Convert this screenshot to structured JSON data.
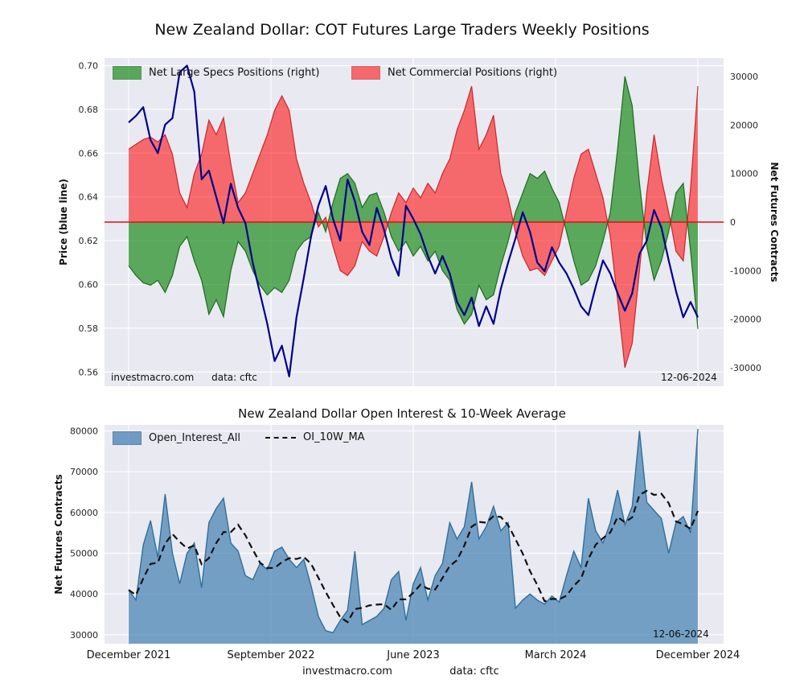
{
  "watermarks": {
    "site": "investmacro.com",
    "data_source": "data: cftc",
    "date_stamp": "12-06-2024"
  },
  "style": {
    "plot_bg": "#e9e9f1",
    "grid": "#ffffff",
    "zero_line": "#dd1111"
  },
  "chart_data": [
    {
      "type": "area+line",
      "title": "New Zealand Dollar: COT Futures Large Traders Weekly Positions",
      "frequency": "weekly (sampled ~biweekly, Dec 2021 - Dec 2024)",
      "x_tick_labels": [
        "December 2021",
        "September 2022",
        "June 2023",
        "March 2024",
        "December 2024"
      ],
      "left_axis": {
        "label": "Price (blue line)",
        "ticks": [
          0.7,
          0.68,
          0.66,
          0.64,
          0.62,
          0.6,
          0.58,
          0.56
        ],
        "range": [
          0.5535,
          0.7035
        ]
      },
      "right_axis": {
        "label": "Net Futures Contracts",
        "ticks": [
          30000,
          20000,
          10000,
          0,
          -10000,
          -20000,
          -30000
        ],
        "range": [
          -33800,
          33800
        ]
      },
      "series": [
        {
          "name": "Net Large Specs Positions (right)",
          "axis": "right",
          "color": "#008000",
          "values": [
            -9000,
            -11000,
            -12500,
            -13000,
            -12000,
            -14500,
            -11000,
            -5000,
            -3000,
            -8000,
            -12000,
            -19000,
            -16000,
            -19500,
            -10000,
            -4000,
            -6000,
            -10000,
            -13000,
            -15000,
            -13500,
            -14500,
            -12000,
            -6000,
            -4000,
            -3000,
            2000,
            -2000,
            4000,
            9000,
            10000,
            8000,
            3000,
            5500,
            6000,
            2000,
            -3000,
            -6000,
            -4000,
            -7000,
            -5000,
            -8000,
            -6000,
            -10000,
            -12000,
            -18000,
            -21000,
            -19000,
            -13000,
            -16000,
            -15000,
            -9000,
            -4000,
            2000,
            6000,
            10000,
            9000,
            10500,
            7000,
            4000,
            -2000,
            -8000,
            -13000,
            -12000,
            -9000,
            -4000,
            2000,
            15000,
            30000,
            24000,
            8000,
            -5000,
            -12000,
            -8000,
            -2000,
            6000,
            8000,
            -6000,
            -22000
          ]
        },
        {
          "name": "Net Commercial Positions (right)",
          "axis": "right",
          "color": "#ff0000",
          "values": [
            15000,
            16000,
            17000,
            17500,
            16500,
            18000,
            14000,
            6000,
            3000,
            10000,
            14000,
            21000,
            18000,
            21500,
            12000,
            4000,
            6000,
            10000,
            14000,
            18000,
            23000,
            26000,
            23000,
            13000,
            8000,
            4000,
            -1000,
            1000,
            -5000,
            -10000,
            -11000,
            -9000,
            -4000,
            -6000,
            -7000,
            -3000,
            2000,
            6000,
            4000,
            7000,
            5000,
            8000,
            6000,
            10000,
            13000,
            19000,
            23000,
            28000,
            15000,
            18000,
            22000,
            10000,
            5000,
            -2000,
            -7000,
            -10000,
            -9500,
            -11000,
            -8000,
            -5000,
            2000,
            9000,
            14000,
            15000,
            10000,
            5000,
            -3000,
            -16000,
            -30000,
            -25000,
            -10000,
            6000,
            18000,
            9000,
            2000,
            -6000,
            -8000,
            7000,
            28000
          ]
        },
        {
          "name": "NZD Price",
          "axis": "left",
          "color": "#00008b",
          "values": [
            0.674,
            0.677,
            0.681,
            0.666,
            0.66,
            0.673,
            0.676,
            0.697,
            0.7,
            0.688,
            0.648,
            0.652,
            0.64,
            0.628,
            0.646,
            0.635,
            0.628,
            0.61,
            0.596,
            0.582,
            0.565,
            0.572,
            0.558,
            0.585,
            0.603,
            0.622,
            0.636,
            0.645,
            0.63,
            0.62,
            0.648,
            0.638,
            0.624,
            0.618,
            0.635,
            0.625,
            0.612,
            0.604,
            0.636,
            0.63,
            0.623,
            0.613,
            0.605,
            0.613,
            0.605,
            0.592,
            0.586,
            0.594,
            0.581,
            0.59,
            0.582,
            0.598,
            0.61,
            0.621,
            0.633,
            0.624,
            0.61,
            0.606,
            0.617,
            0.61,
            0.605,
            0.598,
            0.59,
            0.586,
            0.599,
            0.611,
            0.605,
            0.596,
            0.588,
            0.596,
            0.614,
            0.62,
            0.634,
            0.626,
            0.611,
            0.597,
            0.585,
            0.592,
            0.585
          ]
        }
      ]
    },
    {
      "type": "area+line",
      "title": "New Zealand Dollar Open Interest & 10-Week Average",
      "x_tick_labels": [
        "December 2021",
        "September 2022",
        "June 2023",
        "March 2024",
        "December 2024"
      ],
      "left_axis": {
        "label": "Net Futures Contracts",
        "ticks": [
          80000,
          70000,
          60000,
          50000,
          40000,
          30000
        ],
        "range": [
          27800,
          81500
        ]
      },
      "series": [
        {
          "name": "Open_Interest_All",
          "color": "#4682b4",
          "values": [
            41000,
            38500,
            52000,
            58000,
            49000,
            64500,
            50000,
            42500,
            50000,
            52500,
            41500,
            57500,
            61000,
            63500,
            52500,
            50500,
            44500,
            43500,
            47500,
            46000,
            50500,
            51500,
            48500,
            46500,
            48500,
            42000,
            34500,
            31000,
            30500,
            33500,
            36000,
            50500,
            32500,
            33500,
            34500,
            36500,
            43500,
            45500,
            33500,
            42500,
            46500,
            38500,
            44500,
            47500,
            57500,
            53500,
            56500,
            67500,
            53500,
            56500,
            61500,
            55500,
            57500,
            36500,
            38500,
            40000,
            38500,
            37500,
            39500,
            38000,
            44500,
            50500,
            46500,
            63500,
            55500,
            52500,
            57500,
            65500,
            57000,
            61500,
            80000,
            62500,
            60500,
            58500,
            50000,
            57500,
            59000,
            55000,
            80500
          ]
        },
        {
          "name": "OI_10W_MA",
          "color": "#111111",
          "style": "dashed",
          "derived_from": "Open_Interest_All",
          "window_points": 5
        }
      ]
    }
  ]
}
